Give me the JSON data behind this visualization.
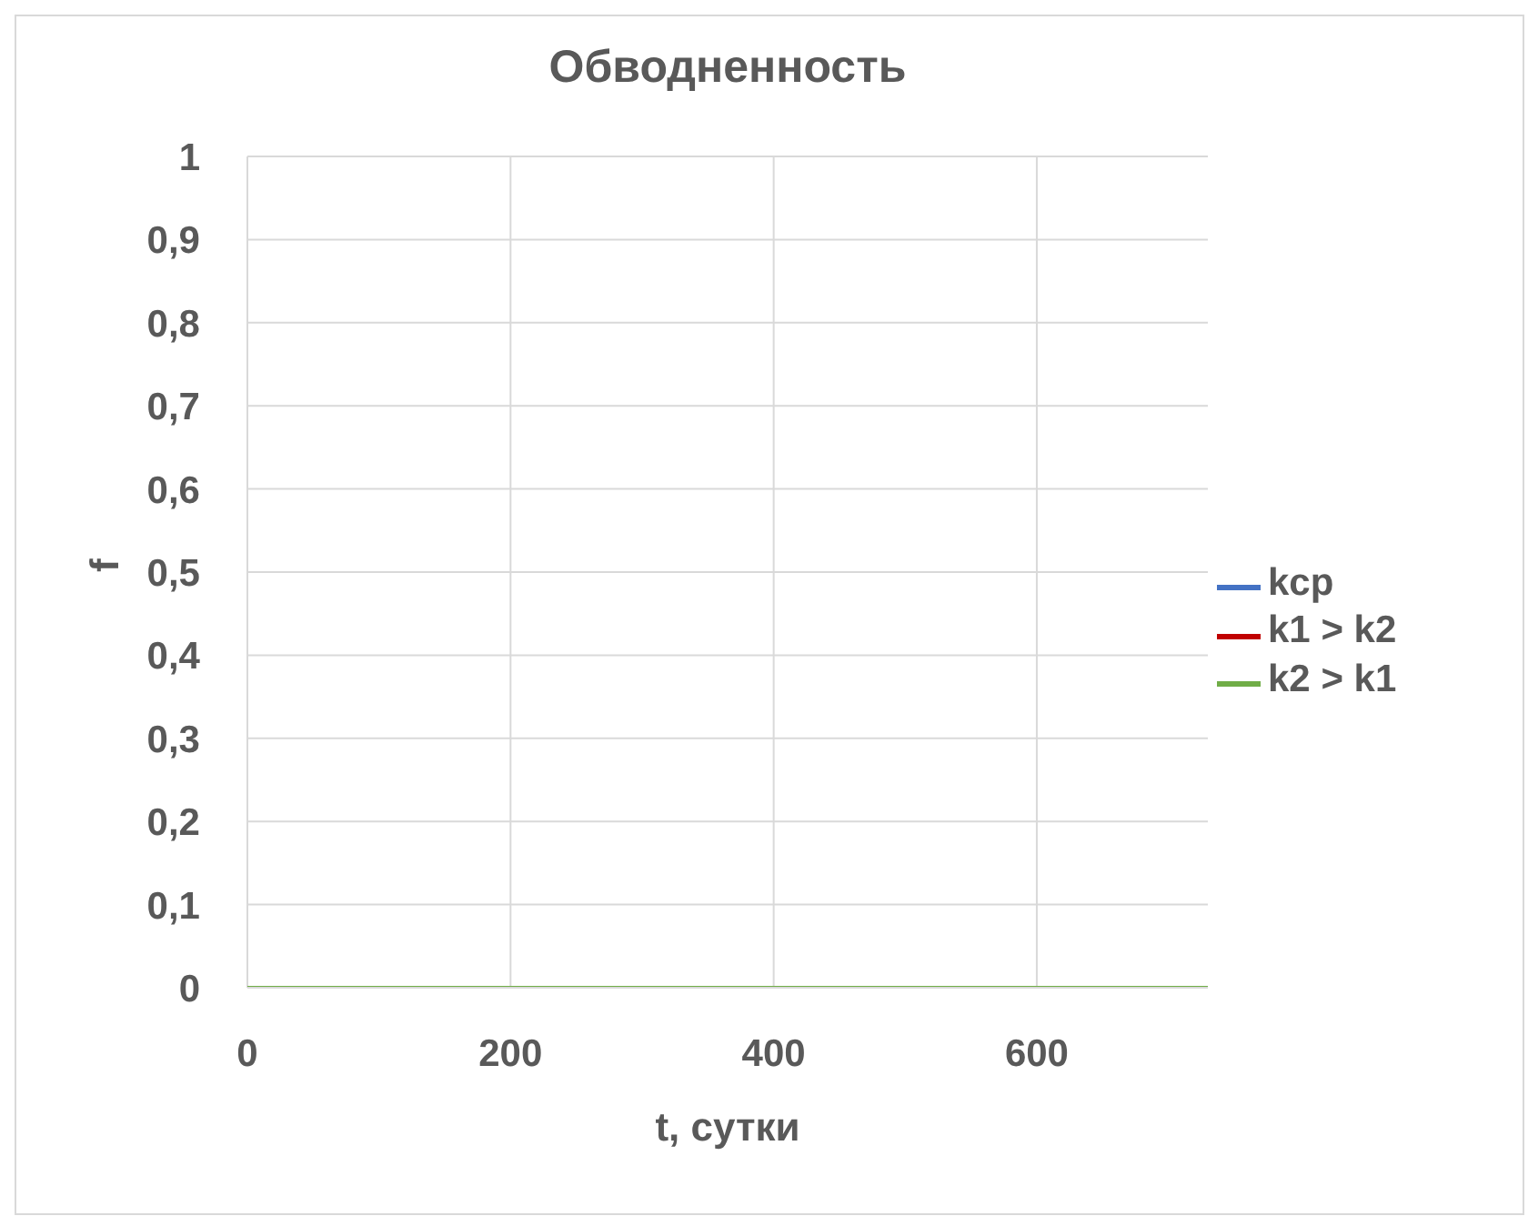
{
  "chart_data": {
    "type": "line",
    "title": "Обводненность",
    "xlabel": "t, сутки",
    "ylabel": "f",
    "x": [
      0,
      730
    ],
    "series": [
      {
        "name": "kcp",
        "color": "#4472c4",
        "values": [
          null,
          null
        ]
      },
      {
        "name": "k1 > k2",
        "color": "#c00000",
        "values": [
          null,
          null
        ]
      },
      {
        "name": "k2 > k1",
        "color": "#70ad47",
        "values": [
          0,
          0
        ]
      }
    ],
    "xlim": [
      0,
      730
    ],
    "xticks": [
      0,
      200,
      400,
      600
    ],
    "ylim": [
      0,
      1
    ],
    "yticks": [
      0,
      {
        "value": 0.1,
        "label": "0,1"
      },
      {
        "value": 0.2,
        "label": "0,2"
      },
      {
        "value": 0.3,
        "label": "0,3"
      },
      {
        "value": 0.4,
        "label": "0,4"
      },
      {
        "value": 0.5,
        "label": "0,5"
      },
      {
        "value": 0.6,
        "label": "0,6"
      },
      {
        "value": 0.7,
        "label": "0,7"
      },
      {
        "value": 0.8,
        "label": "0,8"
      },
      {
        "value": 0.9,
        "label": "0,9"
      },
      1
    ],
    "grid": true,
    "legend": "right",
    "marker": "none",
    "line_style": "solid"
  }
}
